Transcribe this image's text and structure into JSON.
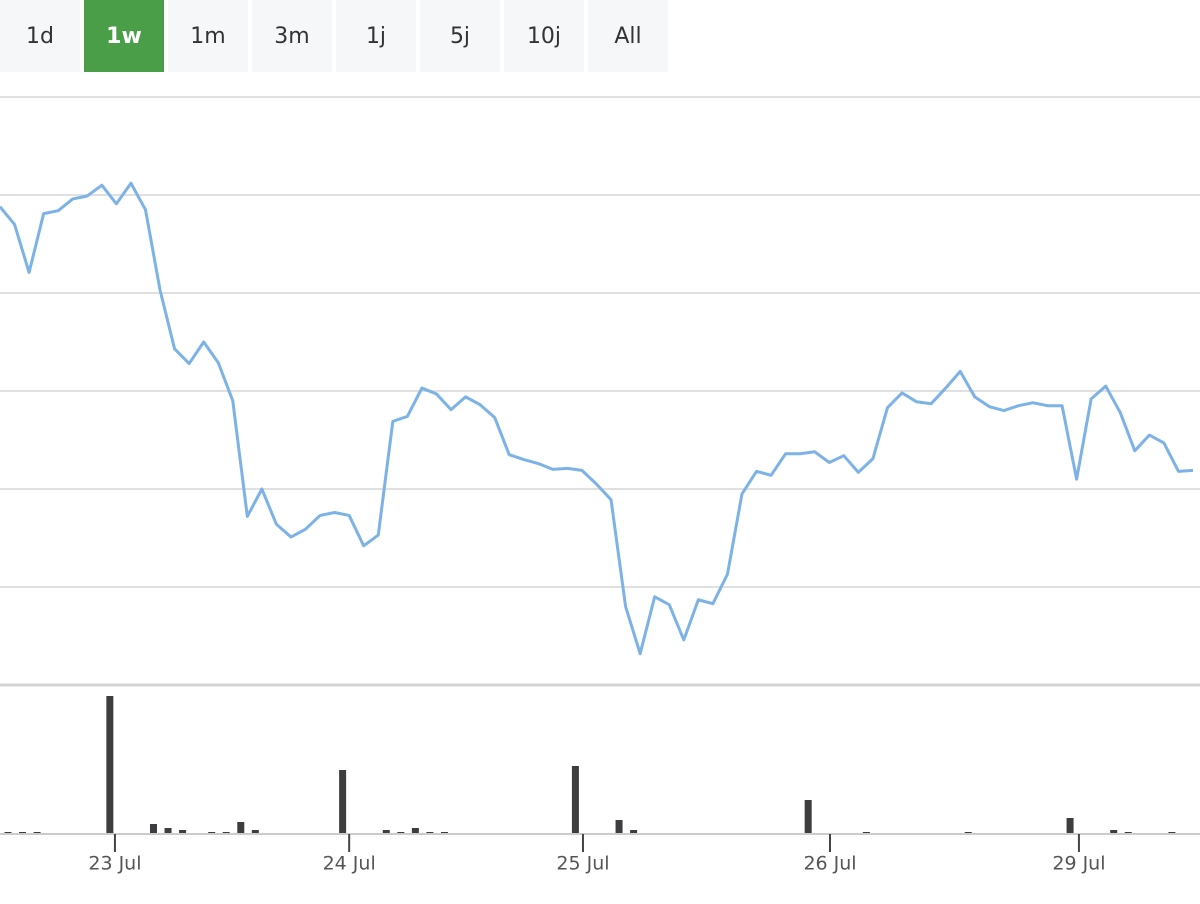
{
  "range_selector": {
    "options": [
      "1d",
      "1w",
      "1m",
      "3m",
      "1j",
      "5j",
      "10j",
      "All"
    ],
    "selected": 1
  },
  "chart_data": [
    {
      "type": "line",
      "color": "#7cb2e6",
      "xlim": [
        0,
        82
      ],
      "ylim": [
        0,
        6
      ],
      "yticks": [
        1,
        2,
        3,
        4,
        5,
        6
      ],
      "grid": true,
      "values": [
        4.88,
        4.7,
        4.21,
        4.81,
        4.84,
        4.96,
        4.99,
        5.1,
        4.91,
        5.12,
        4.85,
        4.03,
        3.43,
        3.28,
        3.5,
        3.29,
        2.9,
        1.72,
        2.0,
        1.64,
        1.51,
        1.59,
        1.73,
        1.76,
        1.73,
        1.42,
        1.53,
        2.69,
        2.74,
        3.03,
        2.97,
        2.81,
        2.94,
        2.86,
        2.73,
        2.35,
        2.3,
        2.26,
        2.2,
        2.21,
        2.19,
        2.05,
        1.89,
        0.8,
        0.32,
        0.9,
        0.82,
        0.46,
        0.87,
        0.83,
        1.13,
        1.95,
        2.18,
        2.14,
        2.36,
        2.36,
        2.38,
        2.27,
        2.34,
        2.17,
        2.31,
        2.83,
        2.98,
        2.89,
        2.87,
        3.03,
        3.2,
        2.94,
        2.84,
        2.8,
        2.85,
        2.88,
        2.85,
        2.85,
        2.1,
        2.92,
        3.05,
        2.78,
        2.39,
        2.55,
        2.47,
        2.18,
        2.19
      ]
    },
    {
      "type": "bar",
      "color": "#3d3d40",
      "xlim": [
        0,
        82
      ],
      "ylim": [
        0,
        138
      ],
      "values": [
        2,
        2,
        2,
        0,
        0,
        0,
        0,
        138,
        0,
        0,
        10,
        6,
        4,
        0,
        2,
        2,
        12,
        4,
        0,
        0,
        0,
        0,
        0,
        64,
        0,
        0,
        4,
        2,
        6,
        2,
        2,
        0,
        0,
        0,
        0,
        0,
        0,
        0,
        0,
        68,
        0,
        0,
        14,
        4,
        0,
        0,
        0,
        0,
        0,
        0,
        0,
        0,
        0,
        0,
        0,
        34,
        0,
        0,
        0,
        2,
        0,
        0,
        0,
        0,
        0,
        0,
        2,
        0,
        0,
        0,
        0,
        0,
        0,
        16,
        0,
        0,
        4,
        2,
        0,
        0,
        2,
        0,
        0
      ],
      "xticks": [
        {
          "value": 7.9,
          "label": "23 Jul"
        },
        {
          "value": 24.0,
          "label": "24 Jul"
        },
        {
          "value": 40.07,
          "label": "25 Jul"
        },
        {
          "value": 57.05,
          "label": "26 Jul"
        },
        {
          "value": 74.16,
          "label": "29 Jul"
        }
      ]
    }
  ]
}
